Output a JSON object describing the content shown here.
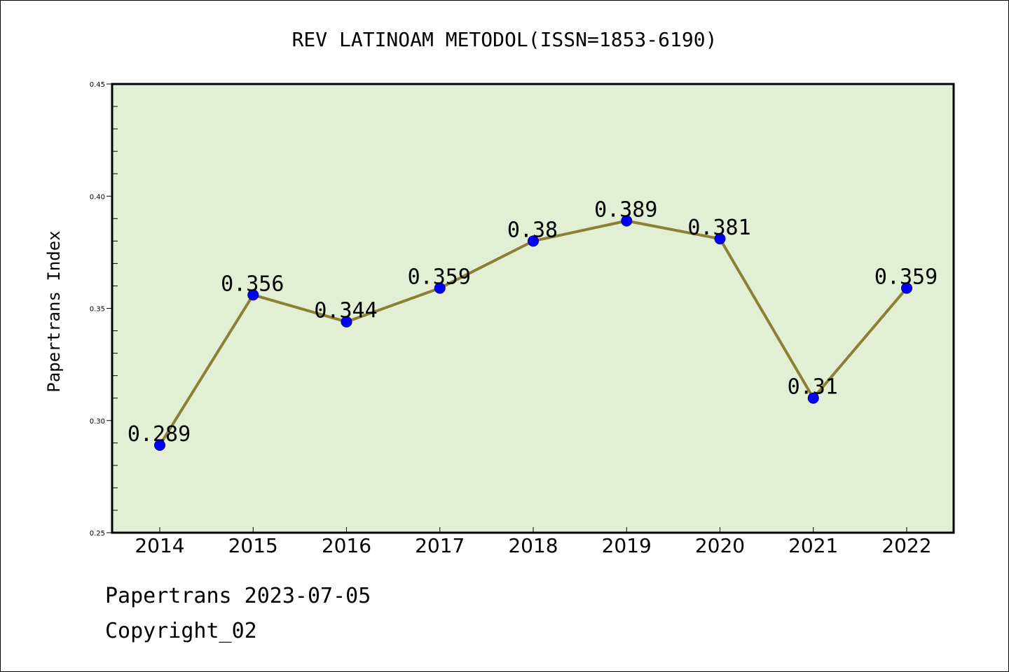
{
  "chart_data": {
    "type": "line",
    "title": "REV LATINOAM METODOL(ISSN=1853-6190)",
    "xlabel": "",
    "ylabel": "Papertrans Index",
    "categories": [
      "2014",
      "2015",
      "2016",
      "2017",
      "2018",
      "2019",
      "2020",
      "2021",
      "2022"
    ],
    "series": [
      {
        "values": [
          0.289,
          0.356,
          0.344,
          0.359,
          0.38,
          0.389,
          0.381,
          0.31,
          0.359
        ],
        "labels": [
          "0.289",
          "0.356",
          "0.344",
          "0.359",
          "0.38",
          "0.389",
          "0.381",
          "0.31",
          "0.359"
        ]
      }
    ],
    "ylim": [
      0.25,
      0.45
    ],
    "yticks": [
      "0.25",
      "0.30",
      "0.35",
      "0.40",
      "0.45"
    ],
    "grid": false,
    "legend": "none",
    "colors": {
      "plot_background": "#e2efd4",
      "line": "#8b8035",
      "marker": "#0000ff"
    }
  },
  "footer": {
    "date_line": "Papertrans 2023-07-05",
    "copyright_line": "Copyright_02"
  }
}
